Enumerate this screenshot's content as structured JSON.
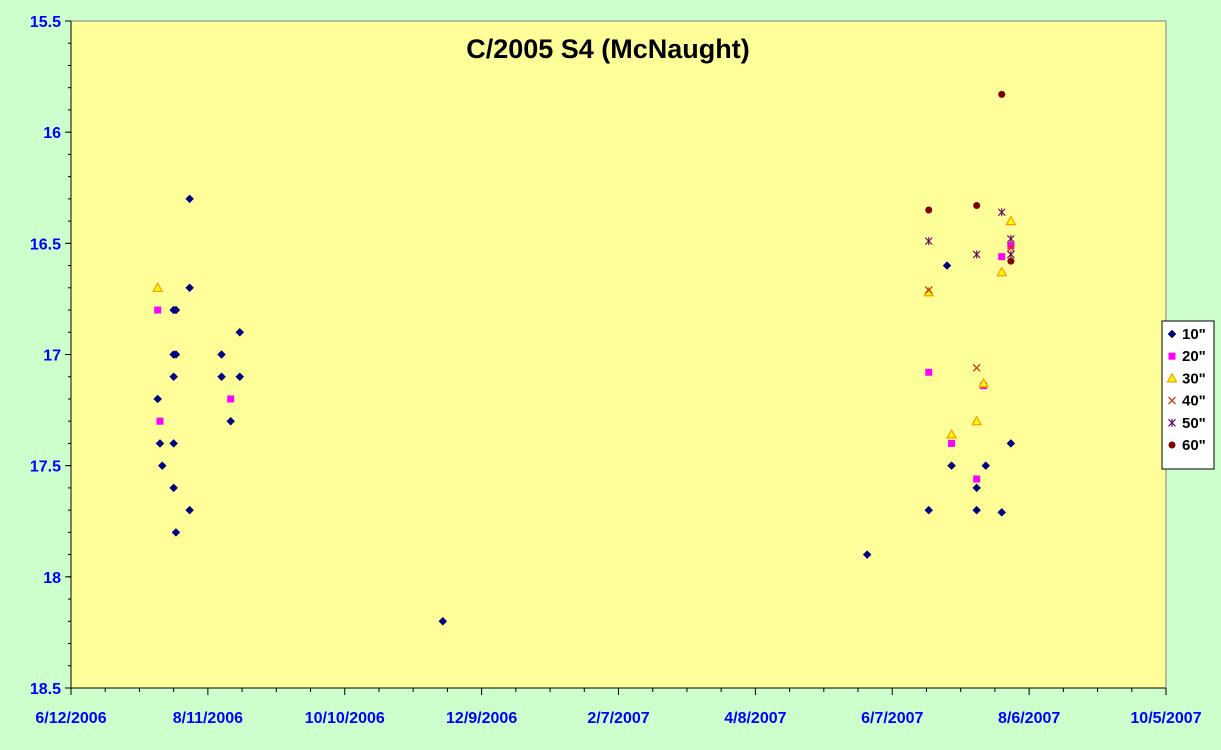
{
  "chart_data": {
    "type": "scatter",
    "title": "C/2005 S4 (McNaught)",
    "xlabel": "",
    "ylabel": "",
    "x_axis": {
      "min": "2006-06-12",
      "max": "2007-10-05",
      "tick_labels": [
        "6/12/2006",
        "8/11/2006",
        "10/10/2006",
        "12/9/2006",
        "2/7/2007",
        "4/8/2007",
        "6/7/2007",
        "8/6/2007",
        "10/5/2007"
      ]
    },
    "y_axis": {
      "min": 15.5,
      "max": 18.5,
      "reversed": true,
      "tick_labels": [
        "15.5",
        "16",
        "16.5",
        "17",
        "17.5",
        "18",
        "18.5"
      ]
    },
    "grid": false,
    "legend_position": "right",
    "colors": {
      "page_background": "#ccffcc",
      "plot_background": "#ffff99",
      "axis_labels": "#0000ff",
      "title": "#000000"
    },
    "series": [
      {
        "name": "10\"",
        "marker": "diamond",
        "color": "#000080",
        "points": [
          {
            "x": "2006-07-20",
            "y": 17.2
          },
          {
            "x": "2006-07-21",
            "y": 17.4
          },
          {
            "x": "2006-07-22",
            "y": 17.5
          },
          {
            "x": "2006-07-27",
            "y": 16.8
          },
          {
            "x": "2006-07-27",
            "y": 17.0
          },
          {
            "x": "2006-07-27",
            "y": 17.1
          },
          {
            "x": "2006-07-27",
            "y": 17.4
          },
          {
            "x": "2006-07-27",
            "y": 17.6
          },
          {
            "x": "2006-07-28",
            "y": 16.8
          },
          {
            "x": "2006-07-28",
            "y": 17.0
          },
          {
            "x": "2006-07-28",
            "y": 17.8
          },
          {
            "x": "2006-08-03",
            "y": 16.3
          },
          {
            "x": "2006-08-03",
            "y": 16.7
          },
          {
            "x": "2006-08-03",
            "y": 17.7
          },
          {
            "x": "2006-08-17",
            "y": 17.0
          },
          {
            "x": "2006-08-17",
            "y": 17.1
          },
          {
            "x": "2006-08-21",
            "y": 17.3
          },
          {
            "x": "2006-08-25",
            "y": 16.9
          },
          {
            "x": "2006-08-25",
            "y": 17.1
          },
          {
            "x": "2006-11-22",
            "y": 18.2
          },
          {
            "x": "2007-05-27",
            "y": 17.9
          },
          {
            "x": "2007-06-23",
            "y": 17.7
          },
          {
            "x": "2007-07-01",
            "y": 16.6
          },
          {
            "x": "2007-07-03",
            "y": 17.5
          },
          {
            "x": "2007-07-14",
            "y": 17.6
          },
          {
            "x": "2007-07-14",
            "y": 17.7
          },
          {
            "x": "2007-07-18",
            "y": 17.5
          },
          {
            "x": "2007-07-25",
            "y": 17.71
          },
          {
            "x": "2007-07-29",
            "y": 17.4
          }
        ]
      },
      {
        "name": "20\"",
        "marker": "square",
        "color": "#ff00ff",
        "points": [
          {
            "x": "2006-07-20",
            "y": 16.8
          },
          {
            "x": "2006-07-21",
            "y": 17.3
          },
          {
            "x": "2006-08-21",
            "y": 17.2
          },
          {
            "x": "2007-06-23",
            "y": 17.08
          },
          {
            "x": "2007-07-03",
            "y": 17.4
          },
          {
            "x": "2007-07-14",
            "y": 17.56
          },
          {
            "x": "2007-07-17",
            "y": 17.14
          },
          {
            "x": "2007-07-25",
            "y": 16.56
          },
          {
            "x": "2007-07-29",
            "y": 16.51
          }
        ]
      },
      {
        "name": "30\"",
        "marker": "triangle",
        "color": "#ff9900",
        "points": [
          {
            "x": "2006-07-20",
            "y": 16.7
          },
          {
            "x": "2007-06-23",
            "y": 16.72
          },
          {
            "x": "2007-07-03",
            "y": 17.36
          },
          {
            "x": "2007-07-14",
            "y": 17.3
          },
          {
            "x": "2007-07-17",
            "y": 17.13
          },
          {
            "x": "2007-07-25",
            "y": 16.63
          },
          {
            "x": "2007-07-29",
            "y": 16.4
          }
        ]
      },
      {
        "name": "40\"",
        "marker": "x",
        "color": "#cc3300",
        "points": [
          {
            "x": "2007-06-23",
            "y": 16.71
          },
          {
            "x": "2007-07-14",
            "y": 17.06
          },
          {
            "x": "2007-07-29",
            "y": 16.52
          }
        ]
      },
      {
        "name": "50\"",
        "marker": "star",
        "color": "#660066",
        "points": [
          {
            "x": "2007-06-23",
            "y": 16.49
          },
          {
            "x": "2007-07-14",
            "y": 16.55
          },
          {
            "x": "2007-07-25",
            "y": 16.36
          },
          {
            "x": "2007-07-29",
            "y": 16.48
          },
          {
            "x": "2007-07-29",
            "y": 16.55
          }
        ]
      },
      {
        "name": "60\"",
        "marker": "circle",
        "color": "#800000",
        "points": [
          {
            "x": "2007-06-23",
            "y": 16.35
          },
          {
            "x": "2007-07-14",
            "y": 16.33
          },
          {
            "x": "2007-07-25",
            "y": 15.83
          },
          {
            "x": "2007-07-29",
            "y": 16.58
          }
        ]
      }
    ]
  }
}
